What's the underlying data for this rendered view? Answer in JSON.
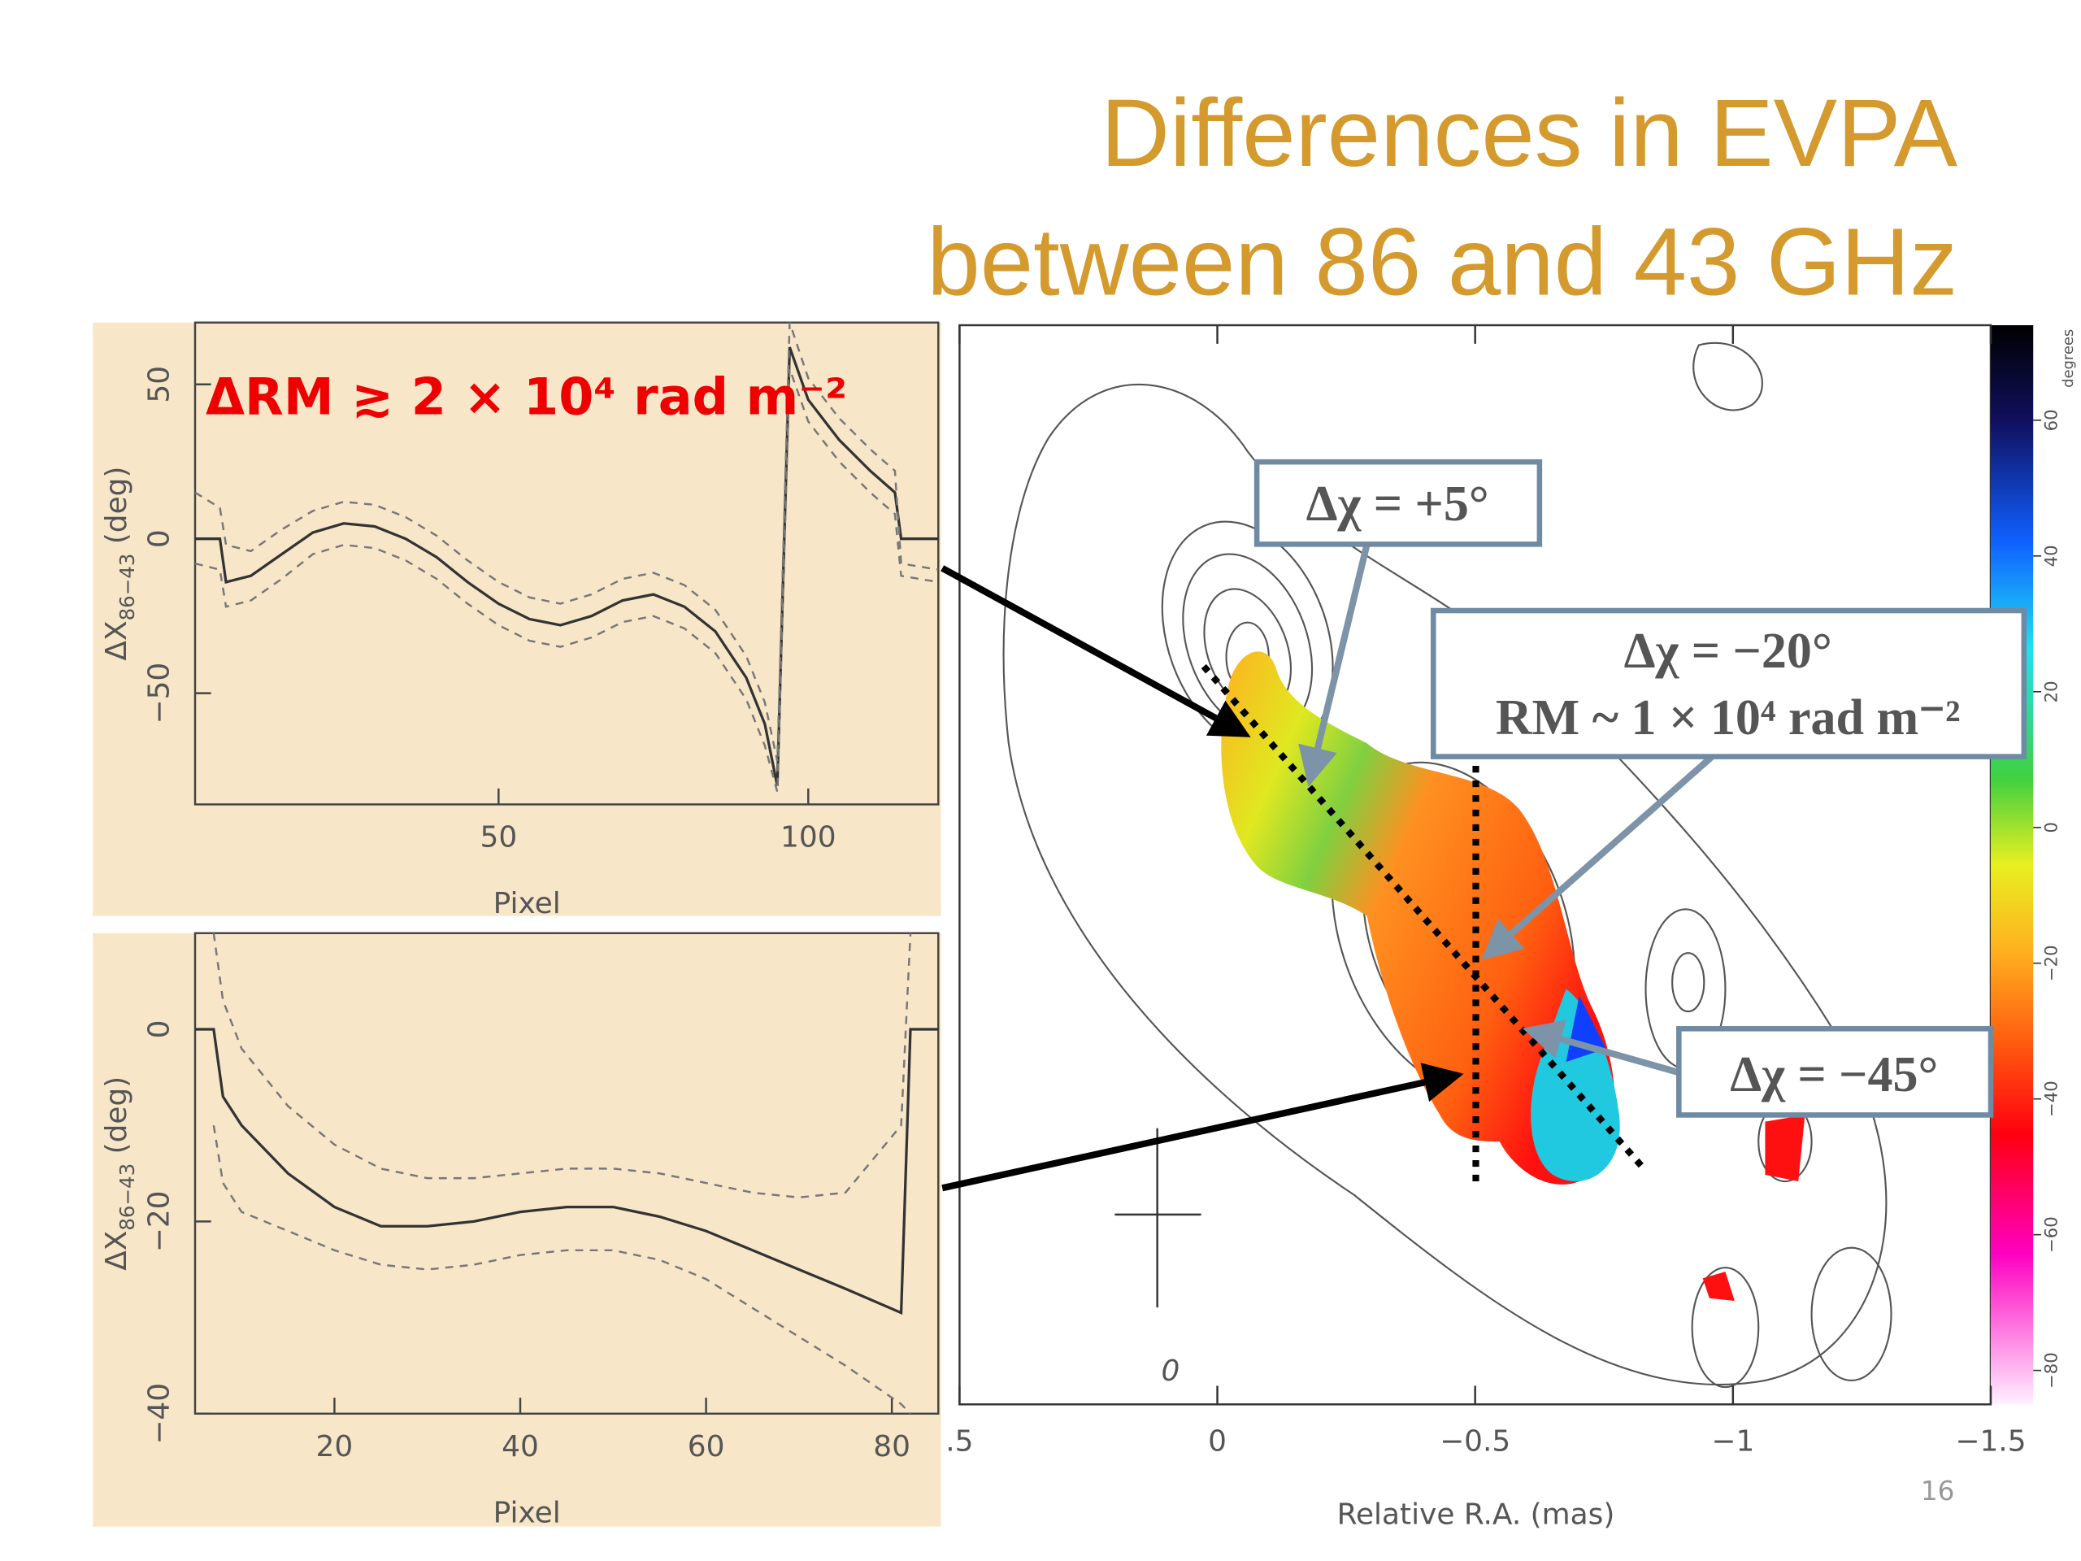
{
  "title": [
    "Differences in EVPA",
    "between 86 and 43 GHz"
  ],
  "page_number": "16",
  "chart_data": [
    {
      "type": "line",
      "annotation": "ΔRM  ≳  2 × 10⁴ rad m⁻²",
      "xlabel": "Pixel",
      "ylabel": "ΔX",
      "ylabel_sub": "86−43",
      "ylabel_unit": " (deg)",
      "x": [
        1,
        5,
        6,
        10,
        15,
        20,
        25,
        30,
        35,
        40,
        45,
        50,
        55,
        60,
        65,
        70,
        75,
        80,
        85,
        90,
        93,
        95,
        97,
        100,
        105,
        110,
        114,
        115,
        121
      ],
      "series": [
        {
          "color": "#333333",
          "values": [
            0,
            0,
            -14,
            -12,
            -5,
            2,
            5,
            4,
            0,
            -6,
            -14,
            -21,
            -26,
            -28,
            -25,
            -20,
            -18,
            -22,
            -30,
            -45,
            -60,
            -80,
            62,
            45,
            32,
            22,
            15,
            0,
            0
          ]
        },
        {
          "color": "#777777",
          "dash": true,
          "values": [
            15,
            10,
            -2,
            -4,
            3,
            9,
            12,
            11,
            7,
            1,
            -7,
            -14,
            -19,
            -21,
            -18,
            -13,
            -11,
            -15,
            -23,
            -38,
            -53,
            -72,
            70,
            52,
            39,
            29,
            22,
            -8,
            -10
          ]
        },
        {
          "color": "#777777",
          "dash": true,
          "values": [
            -8,
            -10,
            -22,
            -20,
            -13,
            -5,
            -2,
            -3,
            -7,
            -13,
            -21,
            -28,
            -33,
            -35,
            -32,
            -27,
            -25,
            -29,
            -37,
            -52,
            -67,
            -82,
            55,
            38,
            25,
            15,
            8,
            -12,
            -14
          ]
        }
      ],
      "xlim": [
        1,
        121
      ],
      "ylim": [
        -86,
        70
      ],
      "xticks": [
        50,
        100
      ],
      "yticks": [
        {
          "value": -50,
          "label": "−50"
        },
        0,
        50
      ]
    },
    {
      "type": "line",
      "xlabel": "Pixel",
      "ylabel": "ΔX",
      "ylabel_sub": "86−43",
      "ylabel_unit": " (deg)",
      "x": [
        5,
        7,
        8,
        10,
        15,
        20,
        25,
        30,
        35,
        40,
        45,
        50,
        55,
        60,
        65,
        70,
        75,
        81,
        82,
        85
      ],
      "series": [
        {
          "color": "#333333",
          "values": [
            0,
            0,
            -7,
            -10,
            -15,
            -18.5,
            -20.5,
            -20.5,
            -20,
            -19,
            -18.5,
            -18.5,
            -19.5,
            -21,
            -23,
            -25,
            -27,
            -29.5,
            0,
            0
          ]
        },
        {
          "color": "#777777",
          "dash": true,
          "values": [
            null,
            10,
            3,
            -2,
            -8,
            -12,
            -14.5,
            -15.5,
            -15.5,
            -15,
            -14.5,
            -14.5,
            -15,
            -16,
            -17,
            -17.5,
            -17,
            -10,
            10,
            null
          ]
        },
        {
          "color": "#777777",
          "dash": true,
          "values": [
            null,
            -10,
            -16,
            -19,
            -21,
            -23,
            -24.5,
            -25,
            -24.5,
            -23.5,
            -23,
            -23,
            -24,
            -26,
            -29,
            -32,
            -35,
            -39,
            -40,
            null
          ]
        }
      ],
      "xlim": [
        5,
        85
      ],
      "ylim": [
        -40,
        10
      ],
      "xticks": [
        20,
        40,
        60,
        80
      ],
      "yticks": [
        {
          "value": -40,
          "label": "−40"
        },
        {
          "value": -20,
          "label": "−20"
        },
        0
      ]
    },
    {
      "type": "map",
      "xlabel": "Relative R.A. (mas)",
      "xlim": [
        0.5,
        -1.5
      ],
      "xticks": [
        {
          "value": 0.5,
          "label": ".5"
        },
        0,
        {
          "value": -0.5,
          "label": "−0.5"
        },
        {
          "value": -1,
          "label": "−1"
        },
        {
          "value": -1.5,
          "label": "−1.5"
        }
      ],
      "colorbar_label": "degrees",
      "clim": [
        -85,
        74
      ],
      "cticks": [
        {
          "value": -80,
          "label": "−80"
        },
        {
          "value": -60,
          "label": "−60"
        },
        {
          "value": -40,
          "label": "−40"
        },
        {
          "value": -20,
          "label": "−20"
        },
        0,
        20,
        40,
        60
      ],
      "annotations": [
        "Δχ = +5°",
        "Δχ = −20°",
        "RM ~ 1 × 10⁴ rad m⁻²",
        "Δχ = −45°"
      ],
      "contour_label": "0"
    }
  ]
}
